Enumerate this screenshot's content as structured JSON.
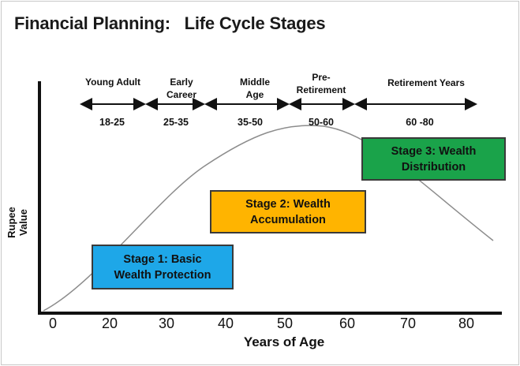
{
  "title": "Financial Planning:   Life Cycle Stages",
  "axes": {
    "y_label": "Rupee\nValue",
    "x_label": "Years of Age",
    "x_ticks": [
      "0",
      "20",
      "30",
      "40",
      "50",
      "60",
      "70",
      "80"
    ]
  },
  "life_stages": [
    {
      "name": "Young Adult",
      "range": "18-25"
    },
    {
      "name": "Early\nCareer",
      "range": "25-35"
    },
    {
      "name": "Middle\nAge",
      "range": "35-50"
    },
    {
      "name": "Pre-\nRetirement",
      "range": "50-60"
    },
    {
      "name": "Retirement Years",
      "range": "60 -80"
    }
  ],
  "stage_boxes": [
    {
      "label": "Stage 1: Basic\nWealth Protection",
      "color": "#1ea7e8"
    },
    {
      "label": "Stage 2: Wealth\nAccumulation",
      "color": "#ffb400"
    },
    {
      "label": "Stage 3: Wealth\nDistribution",
      "color": "#1aa34a"
    }
  ],
  "colors": {
    "curve": "#8c8c8c",
    "axis": "#111111",
    "arrow": "#111111"
  }
}
